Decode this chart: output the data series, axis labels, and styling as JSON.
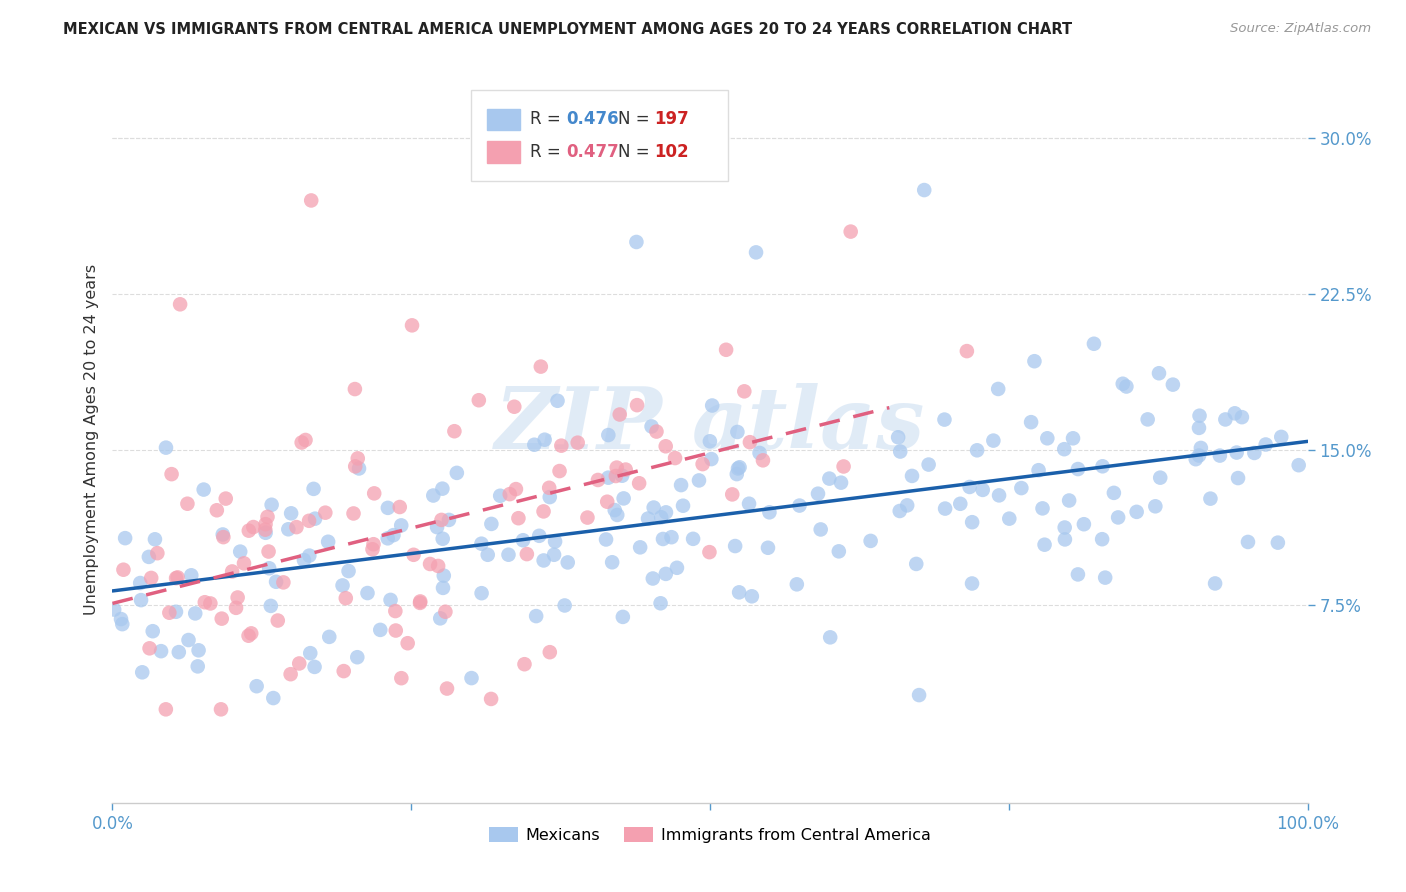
{
  "title": "MEXICAN VS IMMIGRANTS FROM CENTRAL AMERICA UNEMPLOYMENT AMONG AGES 20 TO 24 YEARS CORRELATION CHART",
  "source": "Source: ZipAtlas.com",
  "ylabel": "Unemployment Among Ages 20 to 24 years",
  "xlim": [
    0.0,
    1.0
  ],
  "ylim": [
    -0.02,
    0.33
  ],
  "yticks": [
    0.075,
    0.15,
    0.225,
    0.3
  ],
  "ytick_labels": [
    "7.5%",
    "15.0%",
    "22.5%",
    "30.0%"
  ],
  "xtick_labels": [
    "0.0%",
    "",
    "",
    "",
    "100.0%"
  ],
  "blue_color": "#A8C8EE",
  "pink_color": "#F4A0B0",
  "blue_line_color": "#1A5FAA",
  "pink_line_color": "#E06080",
  "blue_slope": 0.072,
  "blue_intercept": 0.082,
  "pink_slope": 0.145,
  "pink_intercept": 0.076,
  "watermark_text": "ZIP atlas",
  "watermark_color": "#C8DCF0",
  "legend_box_color": "#DDDDDD",
  "n_blue": 197,
  "n_pink": 102,
  "r_blue": "0.476",
  "r_pink": "0.477",
  "r_color_blue": "#4488CC",
  "r_color_pink": "#E06080",
  "n_color": "#CC2222",
  "title_color": "#222222",
  "source_color": "#999999",
  "ylabel_color": "#333333",
  "tick_color": "#5599CC",
  "grid_color": "#DDDDDD",
  "spine_color": "#CCCCCC"
}
